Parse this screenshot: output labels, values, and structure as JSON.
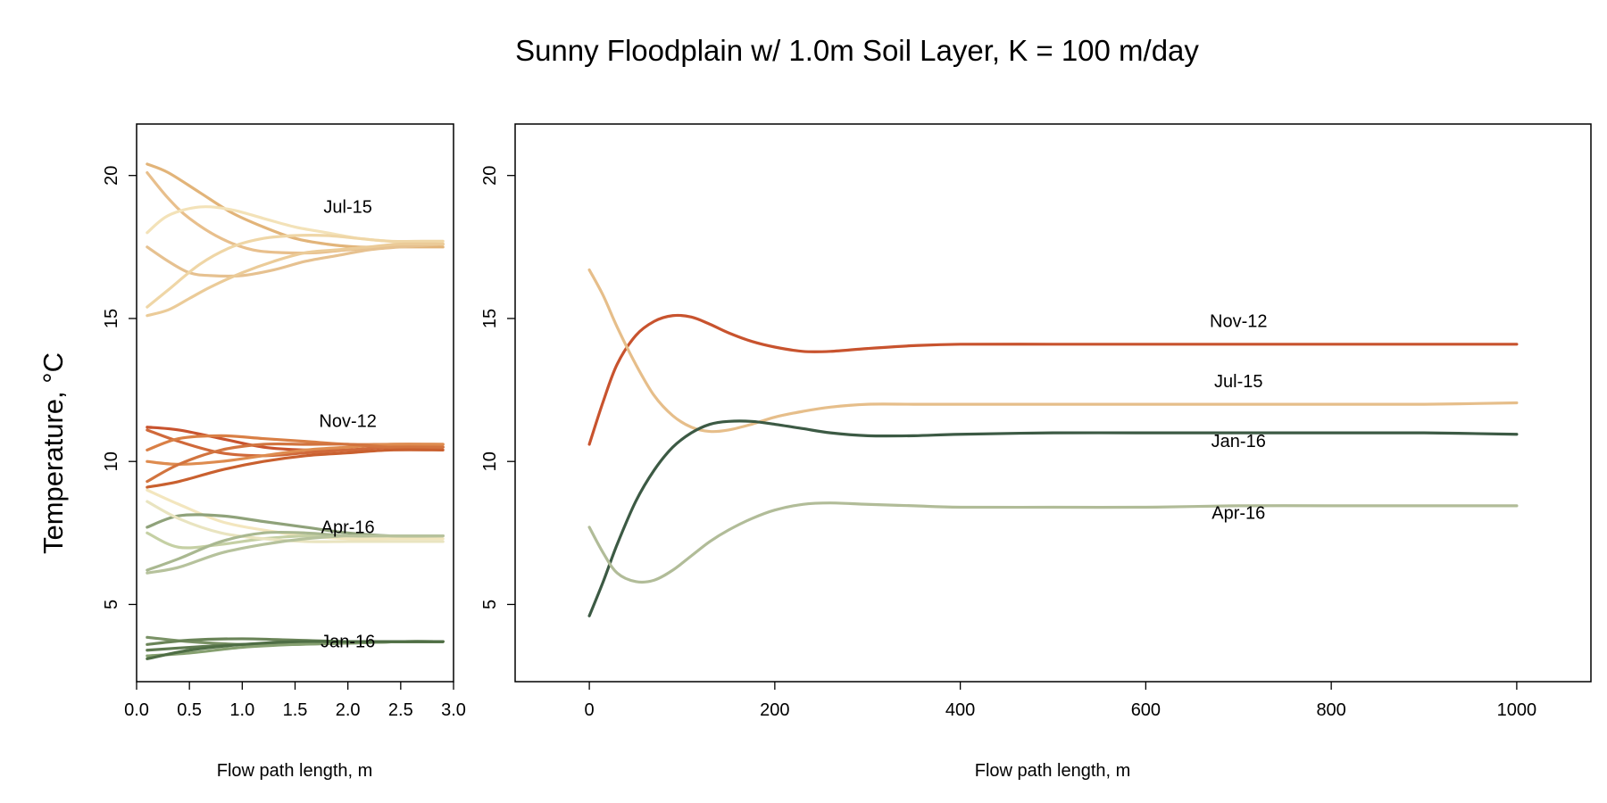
{
  "title": "Sunny Floodplain w/ 1.0m Soil Layer, K = 100 m/day",
  "ylabel": "Temperature, °C",
  "chart_data": [
    {
      "type": "line",
      "xlabel": "Flow path length, m",
      "ylabel": "Temperature, °C",
      "xlim": [
        0.0,
        3.0
      ],
      "ylim": [
        2.3,
        21.8
      ],
      "xticks": [
        0.0,
        0.5,
        1.0,
        1.5,
        2.0,
        2.5,
        3.0
      ],
      "xtick_labels": [
        "0.0",
        "0.5",
        "1.0",
        "1.5",
        "2.0",
        "2.5",
        "3.0"
      ],
      "yticks": [
        5,
        10,
        15,
        20
      ],
      "ytick_labels": [
        "5",
        "10",
        "15",
        "20"
      ],
      "grid": false,
      "annotations": [
        {
          "text": "Jul-15",
          "x": 2.0,
          "y": 18.7
        },
        {
          "text": "Nov-12",
          "x": 2.0,
          "y": 11.2
        },
        {
          "text": "Apr-16",
          "x": 2.0,
          "y": 7.5
        },
        {
          "text": "Jan-16",
          "x": 2.0,
          "y": 3.5
        }
      ],
      "series": [
        {
          "color": "#E2B479",
          "x": [
            0.1,
            0.3,
            0.6,
            0.9,
            1.2,
            1.5,
            1.8,
            2.1,
            2.4,
            2.7,
            2.9
          ],
          "y": [
            20.4,
            20.1,
            19.4,
            18.7,
            18.2,
            17.8,
            17.6,
            17.5,
            17.5,
            17.5,
            17.5
          ]
        },
        {
          "color": "#E8BF8C",
          "x": [
            0.1,
            0.3,
            0.5,
            0.8,
            1.1,
            1.4,
            1.7,
            2.0,
            2.4,
            2.7,
            2.9
          ],
          "y": [
            20.1,
            19.2,
            18.5,
            17.8,
            17.4,
            17.3,
            17.3,
            17.4,
            17.5,
            17.6,
            17.6
          ]
        },
        {
          "color": "#F3E2B8",
          "x": [
            0.1,
            0.3,
            0.6,
            0.9,
            1.2,
            1.5,
            1.8,
            2.1,
            2.4,
            2.7,
            2.9
          ],
          "y": [
            18.0,
            18.6,
            18.9,
            18.8,
            18.5,
            18.2,
            18.0,
            17.8,
            17.7,
            17.6,
            17.6
          ]
        },
        {
          "color": "#E6C190",
          "x": [
            0.1,
            0.3,
            0.5,
            0.7,
            1.0,
            1.3,
            1.6,
            1.9,
            2.2,
            2.5,
            2.9
          ],
          "y": [
            17.5,
            17.0,
            16.6,
            16.5,
            16.5,
            16.7,
            17.0,
            17.2,
            17.4,
            17.5,
            17.6
          ]
        },
        {
          "color": "#EFD6A6",
          "x": [
            0.1,
            0.3,
            0.6,
            0.9,
            1.2,
            1.5,
            1.8,
            2.1,
            2.4,
            2.7,
            2.9
          ],
          "y": [
            15.4,
            16.0,
            16.9,
            17.5,
            17.8,
            17.9,
            17.9,
            17.8,
            17.7,
            17.7,
            17.7
          ]
        },
        {
          "color": "#EBCB98",
          "x": [
            0.1,
            0.3,
            0.5,
            0.7,
            1.0,
            1.3,
            1.6,
            1.9,
            2.2,
            2.5,
            2.9
          ],
          "y": [
            15.1,
            15.3,
            15.7,
            16.1,
            16.6,
            17.0,
            17.3,
            17.4,
            17.5,
            17.6,
            17.6
          ]
        },
        {
          "color": "#C8532E",
          "x": [
            0.1,
            0.4,
            0.8,
            1.2,
            1.6,
            2.0,
            2.4,
            2.9
          ],
          "y": [
            11.2,
            11.1,
            10.8,
            10.5,
            10.4,
            10.4,
            10.5,
            10.5
          ]
        },
        {
          "color": "#D0693A",
          "x": [
            0.1,
            0.4,
            0.8,
            1.2,
            1.6,
            2.0,
            2.4,
            2.9
          ],
          "y": [
            11.1,
            10.7,
            10.3,
            10.2,
            10.3,
            10.4,
            10.5,
            10.5
          ]
        },
        {
          "color": "#D97F45",
          "x": [
            0.1,
            0.4,
            0.8,
            1.2,
            1.6,
            2.0,
            2.4,
            2.9
          ],
          "y": [
            10.4,
            10.8,
            10.9,
            10.8,
            10.7,
            10.6,
            10.6,
            10.6
          ]
        },
        {
          "color": "#DE8C50",
          "x": [
            0.1,
            0.4,
            0.8,
            1.2,
            1.6,
            2.0,
            2.4,
            2.9
          ],
          "y": [
            10.0,
            9.9,
            10.0,
            10.2,
            10.4,
            10.5,
            10.6,
            10.6
          ]
        },
        {
          "color": "#D2743F",
          "x": [
            0.1,
            0.4,
            0.8,
            1.2,
            1.6,
            2.0,
            2.4,
            2.9
          ],
          "y": [
            9.3,
            9.9,
            10.4,
            10.6,
            10.6,
            10.6,
            10.5,
            10.5
          ]
        },
        {
          "color": "#C9602F",
          "x": [
            0.1,
            0.4,
            0.8,
            1.2,
            1.6,
            2.0,
            2.4,
            2.9
          ],
          "y": [
            9.1,
            9.3,
            9.7,
            10.0,
            10.2,
            10.3,
            10.4,
            10.4
          ]
        },
        {
          "color": "#F3E6BE",
          "x": [
            0.1,
            0.4,
            0.8,
            1.2,
            1.6,
            2.0,
            2.4,
            2.9
          ],
          "y": [
            9.0,
            8.5,
            7.9,
            7.6,
            7.4,
            7.3,
            7.3,
            7.3
          ]
        },
        {
          "color": "#8FA27A",
          "x": [
            0.1,
            0.4,
            0.8,
            1.2,
            1.6,
            2.0,
            2.4,
            2.9
          ],
          "y": [
            7.7,
            8.1,
            8.1,
            7.9,
            7.7,
            7.5,
            7.4,
            7.4
          ]
        },
        {
          "color": "#C5D0A4",
          "x": [
            0.1,
            0.4,
            0.8,
            1.2,
            1.6,
            2.0,
            2.4,
            2.9
          ],
          "y": [
            7.5,
            7.0,
            7.1,
            7.3,
            7.4,
            7.4,
            7.4,
            7.4
          ]
        },
        {
          "color": "#E9E4C0",
          "x": [
            0.1,
            0.4,
            0.8,
            1.2,
            1.6,
            2.0,
            2.4,
            2.9
          ],
          "y": [
            8.6,
            8.0,
            7.5,
            7.3,
            7.2,
            7.2,
            7.2,
            7.2
          ]
        },
        {
          "color": "#A9B890",
          "x": [
            0.1,
            0.4,
            0.8,
            1.2,
            1.6,
            2.0,
            2.4,
            2.9
          ],
          "y": [
            6.2,
            6.6,
            7.2,
            7.5,
            7.5,
            7.4,
            7.4,
            7.4
          ]
        },
        {
          "color": "#B6C29C",
          "x": [
            0.1,
            0.4,
            0.8,
            1.2,
            1.6,
            2.0,
            2.4,
            2.9
          ],
          "y": [
            6.1,
            6.3,
            6.8,
            7.1,
            7.3,
            7.4,
            7.4,
            7.4
          ]
        },
        {
          "color": "#7A9266",
          "x": [
            0.1,
            0.5,
            1.0,
            1.5,
            2.0,
            2.5,
            2.9
          ],
          "y": [
            3.85,
            3.7,
            3.6,
            3.6,
            3.65,
            3.7,
            3.7
          ]
        },
        {
          "color": "#6A8458",
          "x": [
            0.1,
            0.5,
            1.0,
            1.5,
            2.0,
            2.5,
            2.9
          ],
          "y": [
            3.6,
            3.75,
            3.8,
            3.75,
            3.7,
            3.7,
            3.7
          ]
        },
        {
          "color": "#5E7A50",
          "x": [
            0.1,
            0.5,
            1.0,
            1.5,
            2.0,
            2.5,
            2.9
          ],
          "y": [
            3.4,
            3.5,
            3.6,
            3.65,
            3.65,
            3.7,
            3.7
          ]
        },
        {
          "color": "#86A070",
          "x": [
            0.1,
            0.5,
            1.0,
            1.5,
            2.0,
            2.5,
            2.9
          ],
          "y": [
            3.2,
            3.3,
            3.5,
            3.6,
            3.65,
            3.7,
            3.7
          ]
        },
        {
          "color": "#4F6E45",
          "x": [
            0.1,
            0.5,
            1.0,
            1.5,
            2.0,
            2.5,
            2.9
          ],
          "y": [
            3.1,
            3.4,
            3.6,
            3.7,
            3.7,
            3.7,
            3.7
          ]
        }
      ]
    },
    {
      "type": "line",
      "xlabel": "Flow path length, m",
      "xlim": [
        -80,
        1080
      ],
      "ylim": [
        2.3,
        21.8
      ],
      "xticks": [
        0,
        200,
        400,
        600,
        800,
        1000
      ],
      "xtick_labels": [
        "0",
        "200",
        "400",
        "600",
        "800",
        "1000"
      ],
      "yticks": [
        5,
        10,
        15,
        20
      ],
      "ytick_labels": [
        "5",
        "10",
        "15",
        "20"
      ],
      "grid": false,
      "annotations": [
        {
          "text": "Nov-12",
          "x": 700,
          "y": 14.7
        },
        {
          "text": "Jul-15",
          "x": 700,
          "y": 12.6
        },
        {
          "text": "Jan-16",
          "x": 700,
          "y": 10.5
        },
        {
          "text": "Apr-16",
          "x": 700,
          "y": 8.0
        }
      ],
      "series": [
        {
          "name": "Nov-12",
          "color": "#C8532E",
          "x": [
            0,
            15,
            30,
            50,
            70,
            90,
            110,
            130,
            150,
            175,
            200,
            230,
            260,
            300,
            350,
            400,
            500,
            600,
            700,
            800,
            900,
            1000
          ],
          "y": [
            10.6,
            12.1,
            13.4,
            14.4,
            14.9,
            15.1,
            15.05,
            14.8,
            14.5,
            14.2,
            14.0,
            13.85,
            13.85,
            13.95,
            14.05,
            14.1,
            14.1,
            14.1,
            14.1,
            14.1,
            14.1,
            14.1
          ]
        },
        {
          "name": "Jul-15",
          "color": "#E6BE8A",
          "x": [
            0,
            15,
            30,
            50,
            70,
            90,
            110,
            130,
            150,
            175,
            200,
            230,
            260,
            300,
            350,
            400,
            500,
            600,
            700,
            800,
            900,
            1000
          ],
          "y": [
            16.7,
            15.8,
            14.7,
            13.4,
            12.3,
            11.6,
            11.2,
            11.05,
            11.1,
            11.3,
            11.55,
            11.75,
            11.9,
            12.0,
            12.0,
            12.0,
            12.0,
            12.0,
            12.0,
            12.0,
            12.0,
            12.05
          ]
        },
        {
          "name": "Jan-16",
          "color": "#3C5A44",
          "x": [
            0,
            15,
            30,
            50,
            70,
            90,
            110,
            130,
            150,
            175,
            200,
            230,
            260,
            300,
            350,
            400,
            500,
            600,
            700,
            800,
            900,
            1000
          ],
          "y": [
            4.6,
            5.8,
            7.1,
            8.6,
            9.7,
            10.5,
            11.0,
            11.3,
            11.4,
            11.4,
            11.3,
            11.15,
            11.0,
            10.9,
            10.9,
            10.95,
            11.0,
            11.0,
            11.0,
            11.0,
            11.0,
            10.95
          ]
        },
        {
          "name": "Apr-16",
          "color": "#B1BC98",
          "x": [
            0,
            15,
            30,
            50,
            70,
            90,
            110,
            130,
            150,
            175,
            200,
            230,
            260,
            300,
            350,
            400,
            500,
            600,
            700,
            800,
            900,
            1000
          ],
          "y": [
            7.7,
            6.8,
            6.1,
            5.8,
            5.85,
            6.2,
            6.7,
            7.2,
            7.6,
            8.0,
            8.3,
            8.5,
            8.55,
            8.5,
            8.45,
            8.4,
            8.4,
            8.4,
            8.45,
            8.45,
            8.45,
            8.45
          ]
        }
      ]
    }
  ]
}
